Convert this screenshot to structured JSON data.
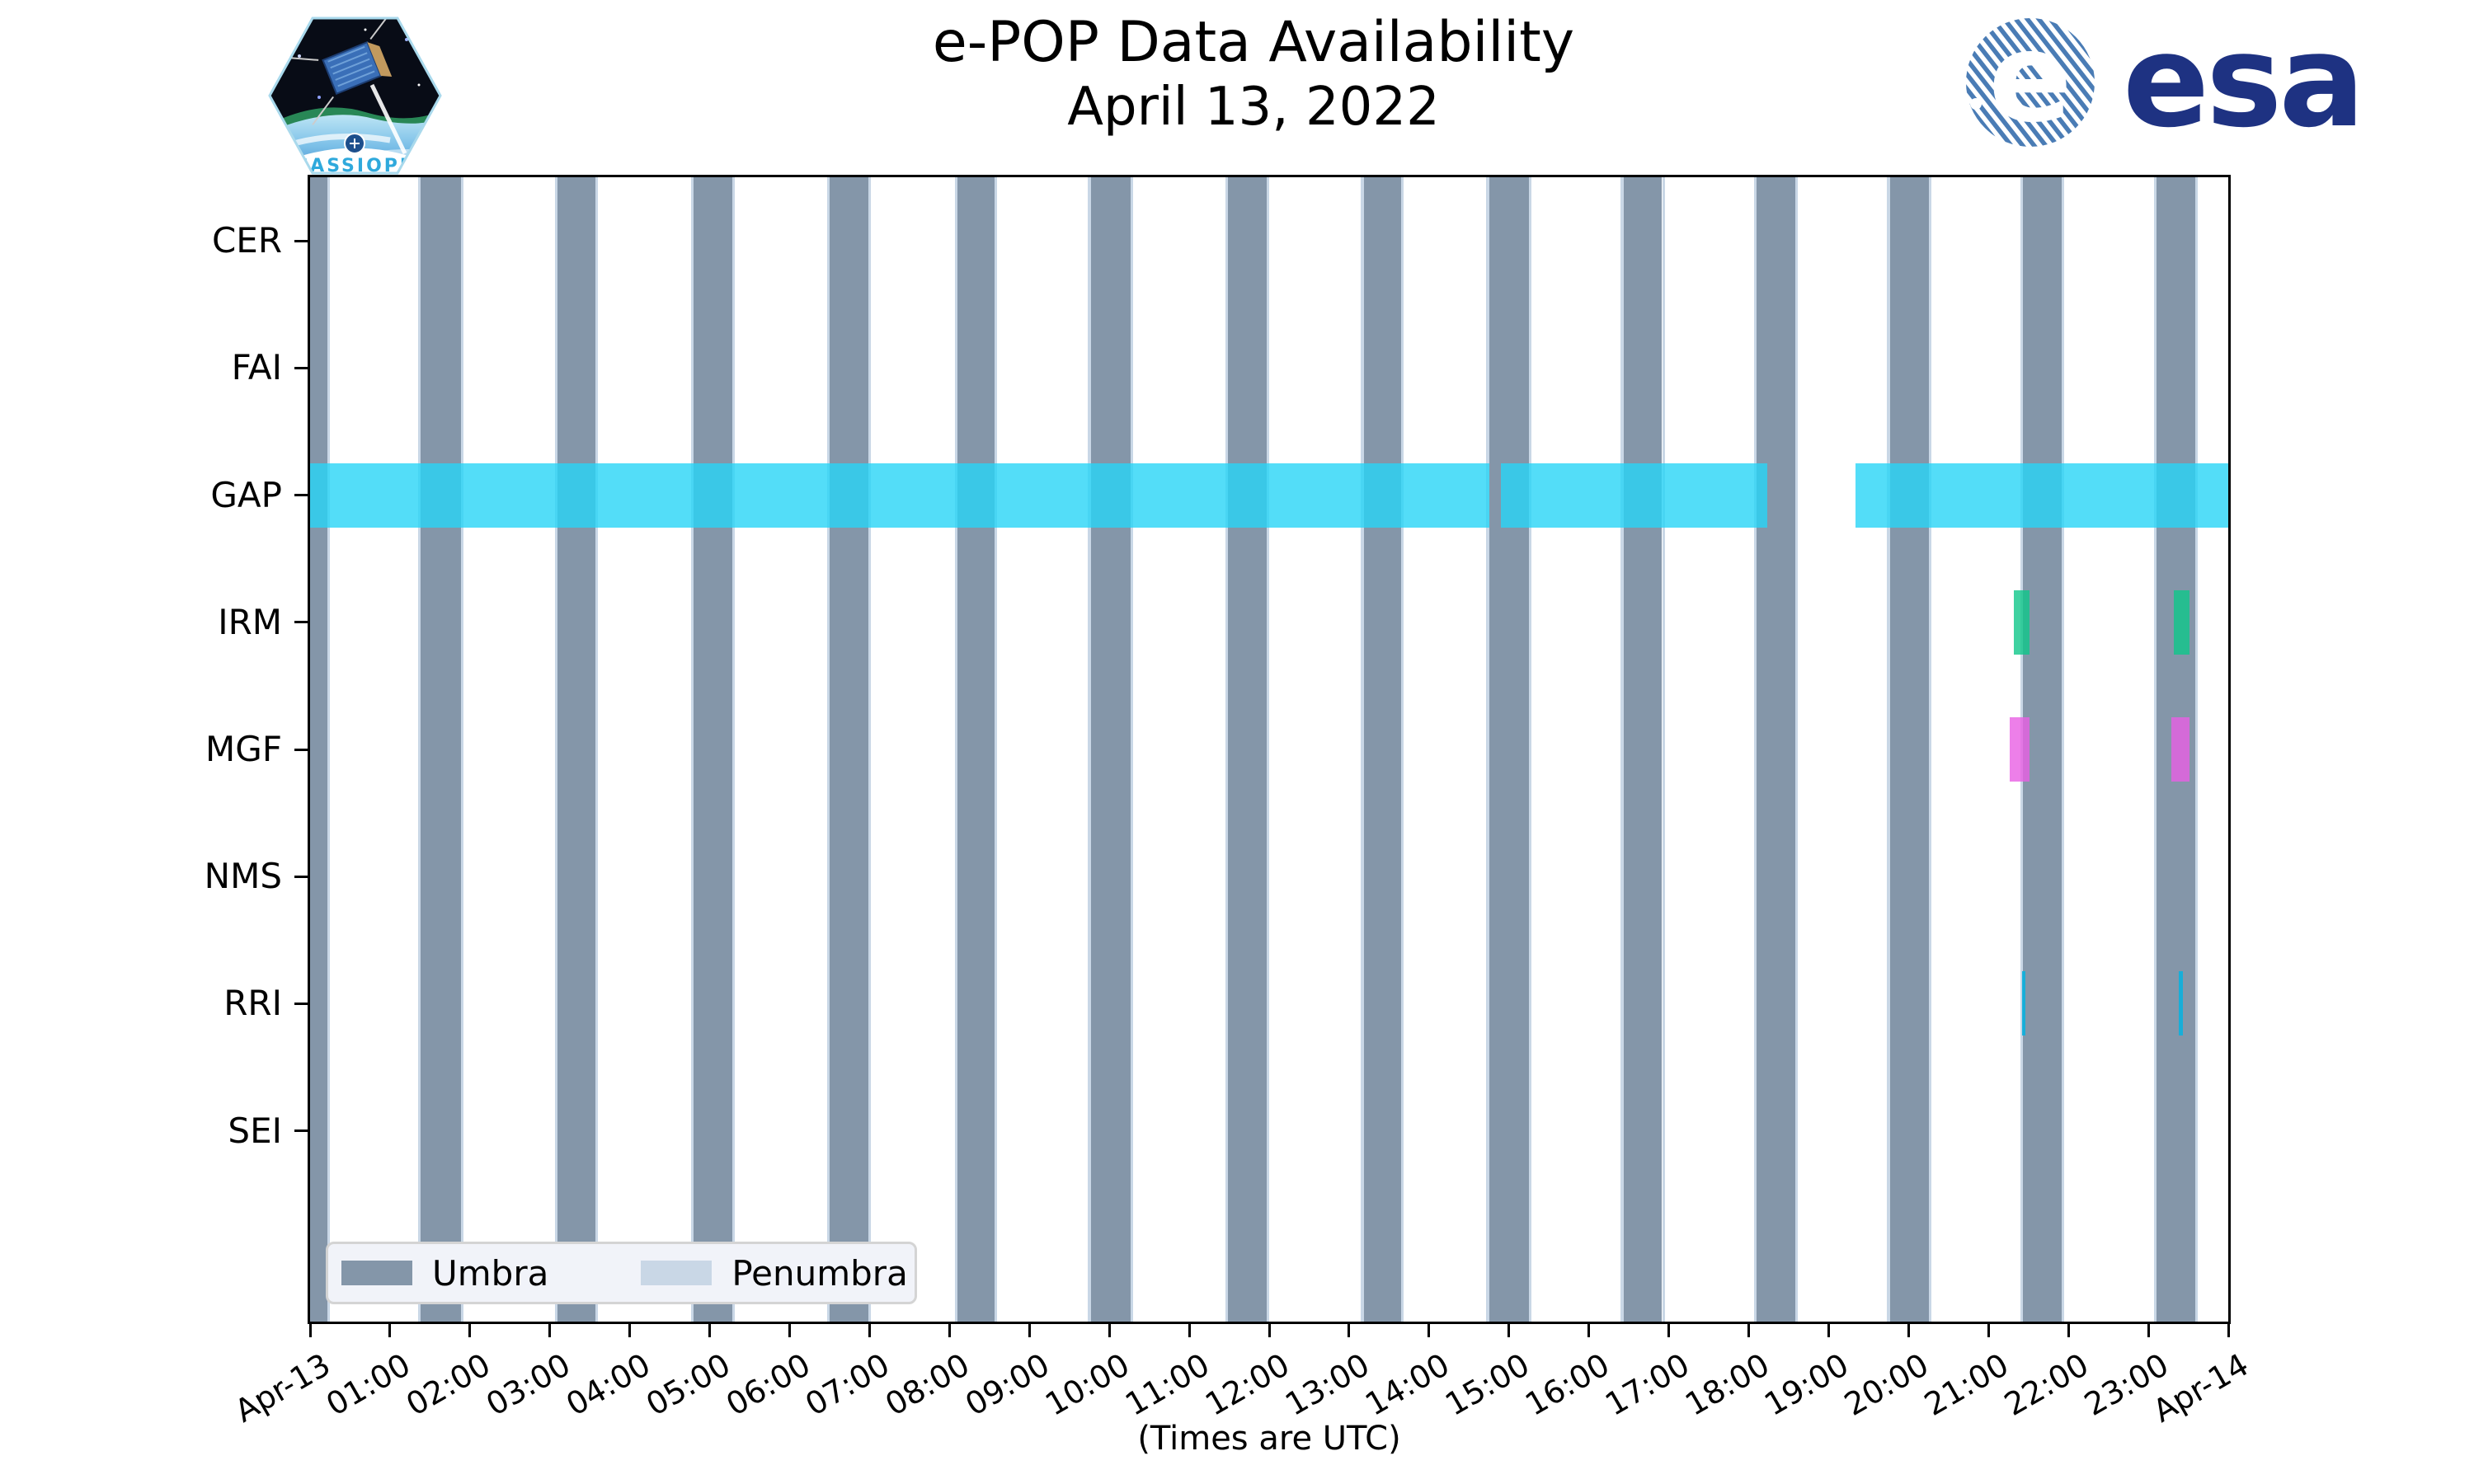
{
  "header": {
    "title": "e-POP Data Availability",
    "subtitle": "April 13, 2022",
    "cassiope_patch_label": "CASSIOPE",
    "esa_logo_label": "esa"
  },
  "chart_data": {
    "type": "bar",
    "subtype": "timeline-availability (broken horizontal bars over day-long x axis)",
    "title": "e-POP Data Availability",
    "subtitle": "April 13, 2022",
    "xlabel": "(Times are UTC)",
    "ylabel": "",
    "x_range_hours": [
      0,
      24
    ],
    "x_ticks": [
      "Apr-13",
      "01:00",
      "02:00",
      "03:00",
      "04:00",
      "05:00",
      "06:00",
      "07:00",
      "08:00",
      "09:00",
      "10:00",
      "11:00",
      "12:00",
      "13:00",
      "14:00",
      "15:00",
      "16:00",
      "17:00",
      "18:00",
      "19:00",
      "20:00",
      "21:00",
      "22:00",
      "23:00",
      "Apr-14"
    ],
    "instruments": [
      "CER",
      "FAI",
      "GAP",
      "IRM",
      "MGF",
      "NMS",
      "RRI",
      "SEI"
    ],
    "umbra_intervals_utc": [
      [
        "00:00",
        "00:13"
      ],
      [
        "01:23",
        "01:53"
      ],
      [
        "03:06",
        "03:34"
      ],
      [
        "04:48",
        "05:17"
      ],
      [
        "06:30",
        "06:59"
      ],
      [
        "08:06",
        "08:34"
      ],
      [
        "09:46",
        "10:16"
      ],
      [
        "11:29",
        "11:58"
      ],
      [
        "13:11",
        "13:39"
      ],
      [
        "14:45",
        "15:15"
      ],
      [
        "16:26",
        "16:55"
      ],
      [
        "18:06",
        "18:35"
      ],
      [
        "19:46",
        "20:15"
      ],
      [
        "21:26",
        "21:55"
      ],
      [
        "23:06",
        "23:35"
      ]
    ],
    "penumbra_minutes_each_side": 2,
    "availability": {
      "GAP": [
        [
          "00:00",
          "14:45"
        ],
        [
          "14:54",
          "18:14"
        ],
        [
          "19:20",
          "24:00"
        ]
      ],
      "IRM": [
        [
          "21:19",
          "21:31"
        ],
        [
          "23:19",
          "23:31"
        ]
      ],
      "MGF": [
        [
          "21:16",
          "21:31"
        ],
        [
          "23:17",
          "23:31"
        ]
      ],
      "RRI": [
        [
          "21:25",
          "21:27"
        ],
        [
          "23:23",
          "23:26"
        ]
      ]
    },
    "colors": {
      "umbra": "#8496a9",
      "penumbra": "#c9d7e6",
      "GAP": "rgba(40,212,246,0.8)",
      "IRM": "rgba(15,199,138,0.8)",
      "MGF": "rgba(233,95,227,0.8)",
      "RRI": "rgba(12,176,221,0.9)",
      "axis": "#000000"
    },
    "legend": [
      {
        "label": "Umbra",
        "color": "#8496a9"
      },
      {
        "label": "Penumbra",
        "color": "#c9d7e6"
      }
    ],
    "legend_position": "lower left",
    "grid": false
  },
  "footer": {
    "x_axis_caption": "(Times are UTC)"
  }
}
